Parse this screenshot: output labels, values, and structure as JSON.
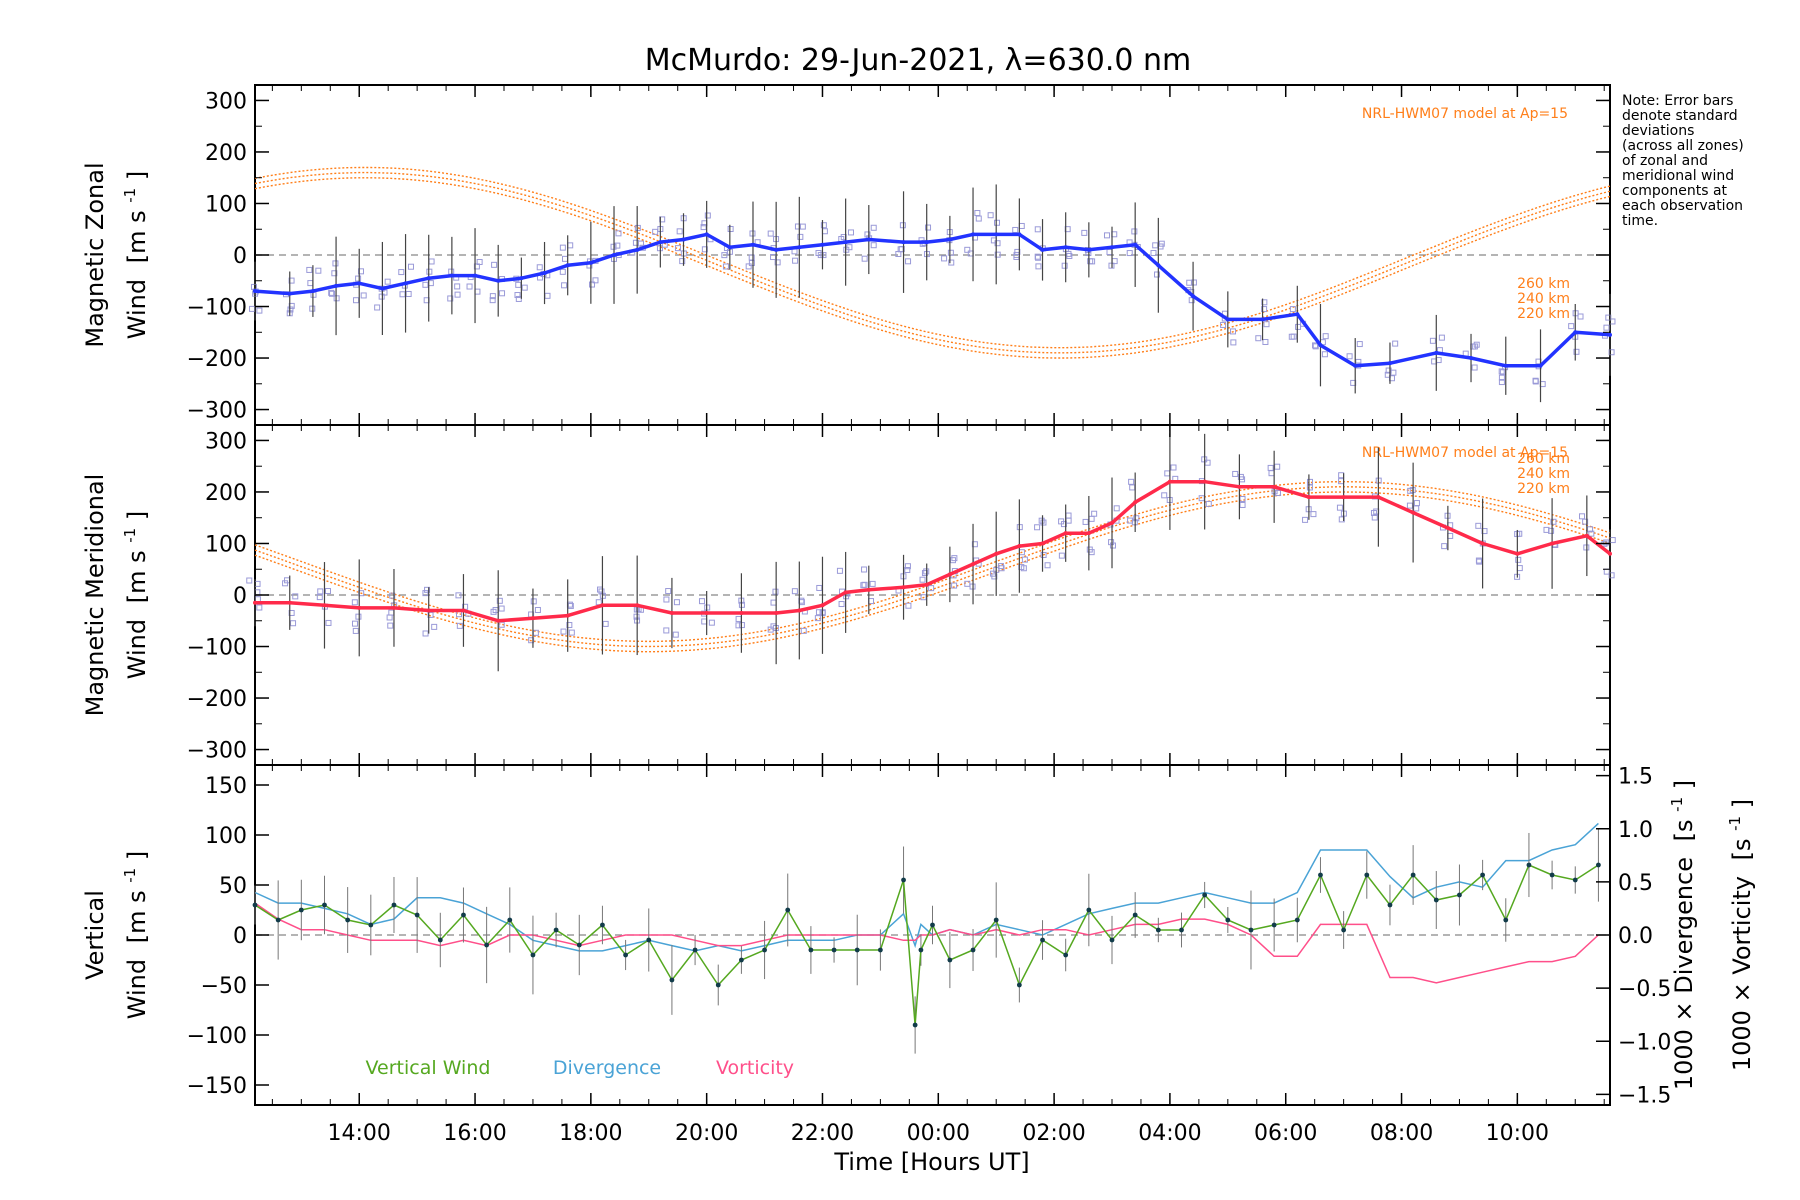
{
  "chart_data": {
    "title": "McMurdo: 29-Jun-2021, λ=630.0 nm",
    "type": "line",
    "note_lines": [
      "Note: Error bars",
      "denote standard",
      "deviations",
      "(across all zones)",
      "of zonal and",
      "meridional wind",
      "components at",
      "each observation",
      "time."
    ],
    "xlabel": "Time [Hours UT]",
    "x_units": "hours since 00:00 UT",
    "xlim": [
      -11.8,
      11.6
    ],
    "x_ticks": [
      -10,
      -8,
      -6,
      -4,
      -2,
      0,
      2,
      4,
      6,
      8,
      10
    ],
    "x_tick_labels": [
      "14:00",
      "16:00",
      "18:00",
      "20:00",
      "22:00",
      "00:00",
      "02:00",
      "04:00",
      "06:00",
      "08:00",
      "10:00"
    ],
    "colors": {
      "zonal": "#2233ff",
      "meridional": "#ff2a4a",
      "model": "#ff7f1a",
      "scatter": "#9a9ad8",
      "vertical": "#55a820",
      "divergence": "#4aa3d6",
      "vorticity": "#ff4f8a",
      "errorbar": "#444444",
      "zero_line": "#888888"
    },
    "zonal": {
      "ylabel_line1": "Magnetic Zonal",
      "ylabel_line2": "Wind",
      "ylabel_units": "[m s",
      "ylabel_exp": "-1",
      "ylabel_close": "]",
      "ylim": [
        -330,
        330
      ],
      "y_ticks": [
        300,
        200,
        100,
        0,
        -100,
        -200,
        -300
      ],
      "y_tick_labels": [
        "300",
        "200",
        "100",
        "0",
        "−100",
        "−200",
        "−300"
      ],
      "model_title": "NRL-HWM07 model at Ap=15",
      "model_altitudes": [
        "260 km",
        "240 km",
        "220 km"
      ],
      "x": [
        -11.8,
        -11.2,
        -10.8,
        -10.4,
        -10.0,
        -9.6,
        -9.2,
        -8.8,
        -8.4,
        -8.0,
        -7.6,
        -7.2,
        -6.8,
        -6.4,
        -6.0,
        -5.6,
        -5.2,
        -4.8,
        -4.4,
        -4.0,
        -3.6,
        -3.2,
        -2.8,
        -2.4,
        -2.0,
        -1.6,
        -1.2,
        -0.6,
        -0.2,
        0.2,
        0.6,
        1.0,
        1.4,
        1.8,
        2.2,
        2.6,
        3.0,
        3.4,
        3.8,
        4.4,
        5.0,
        5.6,
        6.2,
        6.6,
        7.2,
        7.8,
        8.6,
        9.2,
        9.8,
        10.4,
        11.0,
        11.6
      ],
      "y": [
        -70,
        -75,
        -70,
        -60,
        -55,
        -65,
        -55,
        -45,
        -40,
        -40,
        -50,
        -45,
        -35,
        -20,
        -15,
        0,
        10,
        25,
        30,
        40,
        15,
        20,
        10,
        15,
        20,
        25,
        30,
        25,
        25,
        30,
        40,
        40,
        40,
        10,
        15,
        10,
        15,
        20,
        -20,
        -80,
        -125,
        -125,
        -115,
        -175,
        -215,
        -210,
        -190,
        -200,
        -215,
        -215,
        -150,
        -155
      ]
    },
    "meridional": {
      "ylabel_line1": "Magnetic Meridional",
      "ylabel_line2": "Wind",
      "ylabel_units": "[m s",
      "ylabel_exp": "-1",
      "ylabel_close": "]",
      "ylim": [
        -330,
        330
      ],
      "y_ticks": [
        300,
        200,
        100,
        0,
        -100,
        -200,
        -300
      ],
      "y_tick_labels": [
        "300",
        "200",
        "100",
        "0",
        "−100",
        "−200",
        "−300"
      ],
      "model_title": "NRL-HWM07 model at Ap=15",
      "model_altitudes": [
        "260 km",
        "240 km",
        "220 km"
      ],
      "x": [
        -11.8,
        -11.2,
        -10.6,
        -10.0,
        -9.4,
        -8.8,
        -8.2,
        -7.6,
        -7.0,
        -6.4,
        -5.8,
        -5.2,
        -4.6,
        -4.0,
        -3.4,
        -2.8,
        -2.4,
        -2.0,
        -1.6,
        -1.2,
        -0.6,
        -0.2,
        0.2,
        0.6,
        1.0,
        1.4,
        1.8,
        2.2,
        2.6,
        3.0,
        3.4,
        4.0,
        4.6,
        5.2,
        5.8,
        6.4,
        7.0,
        7.6,
        8.2,
        8.8,
        9.4,
        10.0,
        10.6,
        11.2,
        11.6
      ],
      "y": [
        -15,
        -15,
        -20,
        -25,
        -25,
        -30,
        -30,
        -50,
        -45,
        -40,
        -20,
        -20,
        -35,
        -35,
        -35,
        -35,
        -30,
        -20,
        5,
        10,
        15,
        20,
        40,
        60,
        80,
        95,
        100,
        120,
        120,
        140,
        180,
        220,
        220,
        210,
        210,
        190,
        190,
        190,
        160,
        130,
        100,
        80,
        100,
        115,
        80
      ]
    },
    "vertical": {
      "ylabel_line1": "Vertical",
      "ylabel_line2": "Wind",
      "ylabel_units": "[m s",
      "ylabel_exp": "-1",
      "ylabel_close": "]",
      "ylim": [
        -170,
        170
      ],
      "y_ticks": [
        150,
        100,
        50,
        0,
        -50,
        -100,
        -150
      ],
      "y_tick_labels": [
        "150",
        "100",
        "50",
        "0",
        "−50",
        "−100",
        "−150"
      ],
      "right_ylim": [
        -1.6,
        1.6
      ],
      "right_ticks": [
        1.5,
        1.0,
        0.5,
        0.0,
        -0.5,
        -1.0,
        -1.5
      ],
      "right_tick_labels": [
        "1.5",
        "1.0",
        "0.5",
        "0.0",
        "−0.5",
        "−1.0",
        "−1.5"
      ],
      "divergence_label": "1000 × Divergence",
      "vorticity_label": "1000 × Vorticity",
      "right_units": "[s",
      "right_exp": "-1",
      "right_close": "]",
      "legend": [
        "Vertical Wind",
        "Divergence",
        "Vorticity"
      ],
      "x": [
        -11.8,
        -11.4,
        -11.0,
        -10.6,
        -10.2,
        -9.8,
        -9.4,
        -9.0,
        -8.6,
        -8.2,
        -7.8,
        -7.4,
        -7.0,
        -6.6,
        -6.2,
        -5.8,
        -5.4,
        -5.0,
        -4.6,
        -4.2,
        -3.8,
        -3.4,
        -3.0,
        -2.6,
        -2.2,
        -1.8,
        -1.4,
        -1.0,
        -0.6,
        -0.4,
        -0.3,
        -0.1,
        0.2,
        0.6,
        1.0,
        1.4,
        1.8,
        2.2,
        2.6,
        3.0,
        3.4,
        3.8,
        4.2,
        4.6,
        5.0,
        5.4,
        5.8,
        6.2,
        6.6,
        7.0,
        7.4,
        7.8,
        8.2,
        8.6,
        9.0,
        9.4,
        9.8,
        10.2,
        10.6,
        11.0,
        11.4
      ],
      "wind": [
        30,
        15,
        25,
        30,
        15,
        10,
        30,
        20,
        -5,
        20,
        -10,
        15,
        -20,
        5,
        -10,
        10,
        -20,
        -5,
        -45,
        -15,
        -50,
        -25,
        -15,
        25,
        -15,
        -15,
        -15,
        -15,
        55,
        -90,
        -15,
        10,
        -25,
        -15,
        15,
        -50,
        -5,
        -20,
        25,
        -5,
        20,
        5,
        5,
        40,
        15,
        5,
        10,
        15,
        60,
        5,
        60,
        30,
        60,
        35,
        40,
        60,
        15,
        70,
        60,
        55,
        70
      ],
      "divergence": [
        0.4,
        0.3,
        0.3,
        0.25,
        0.2,
        0.1,
        0.15,
        0.35,
        0.35,
        0.3,
        0.2,
        0.1,
        -0.05,
        -0.1,
        -0.15,
        -0.15,
        -0.1,
        -0.05,
        -0.1,
        -0.15,
        -0.1,
        -0.15,
        -0.1,
        -0.05,
        -0.05,
        -0.05,
        0.0,
        0.0,
        0.2,
        -0.1,
        0.1,
        0.0,
        0.05,
        0.0,
        0.1,
        0.05,
        0.0,
        0.1,
        0.2,
        0.25,
        0.3,
        0.3,
        0.35,
        0.4,
        0.35,
        0.3,
        0.3,
        0.4,
        0.8,
        0.8,
        0.8,
        0.55,
        0.35,
        0.45,
        0.5,
        0.45,
        0.7,
        0.7,
        0.8,
        0.85,
        1.05
      ],
      "vorticity": [
        0.3,
        0.15,
        0.05,
        0.05,
        0.0,
        -0.05,
        -0.05,
        -0.05,
        -0.1,
        -0.05,
        -0.1,
        0.0,
        0.0,
        -0.05,
        -0.1,
        -0.05,
        0.0,
        0.0,
        0.0,
        -0.05,
        -0.1,
        -0.1,
        -0.05,
        0.0,
        0.0,
        0.0,
        0.0,
        0.0,
        -0.05,
        -0.05,
        0.0,
        0.0,
        0.05,
        0.0,
        0.05,
        0.0,
        0.05,
        0.05,
        0.0,
        0.05,
        0.1,
        0.1,
        0.15,
        0.15,
        0.1,
        0.0,
        -0.2,
        -0.2,
        0.1,
        0.1,
        0.1,
        -0.4,
        -0.4,
        -0.45,
        -0.4,
        -0.35,
        -0.3,
        -0.25,
        -0.25,
        -0.2,
        0.0
      ]
    }
  }
}
